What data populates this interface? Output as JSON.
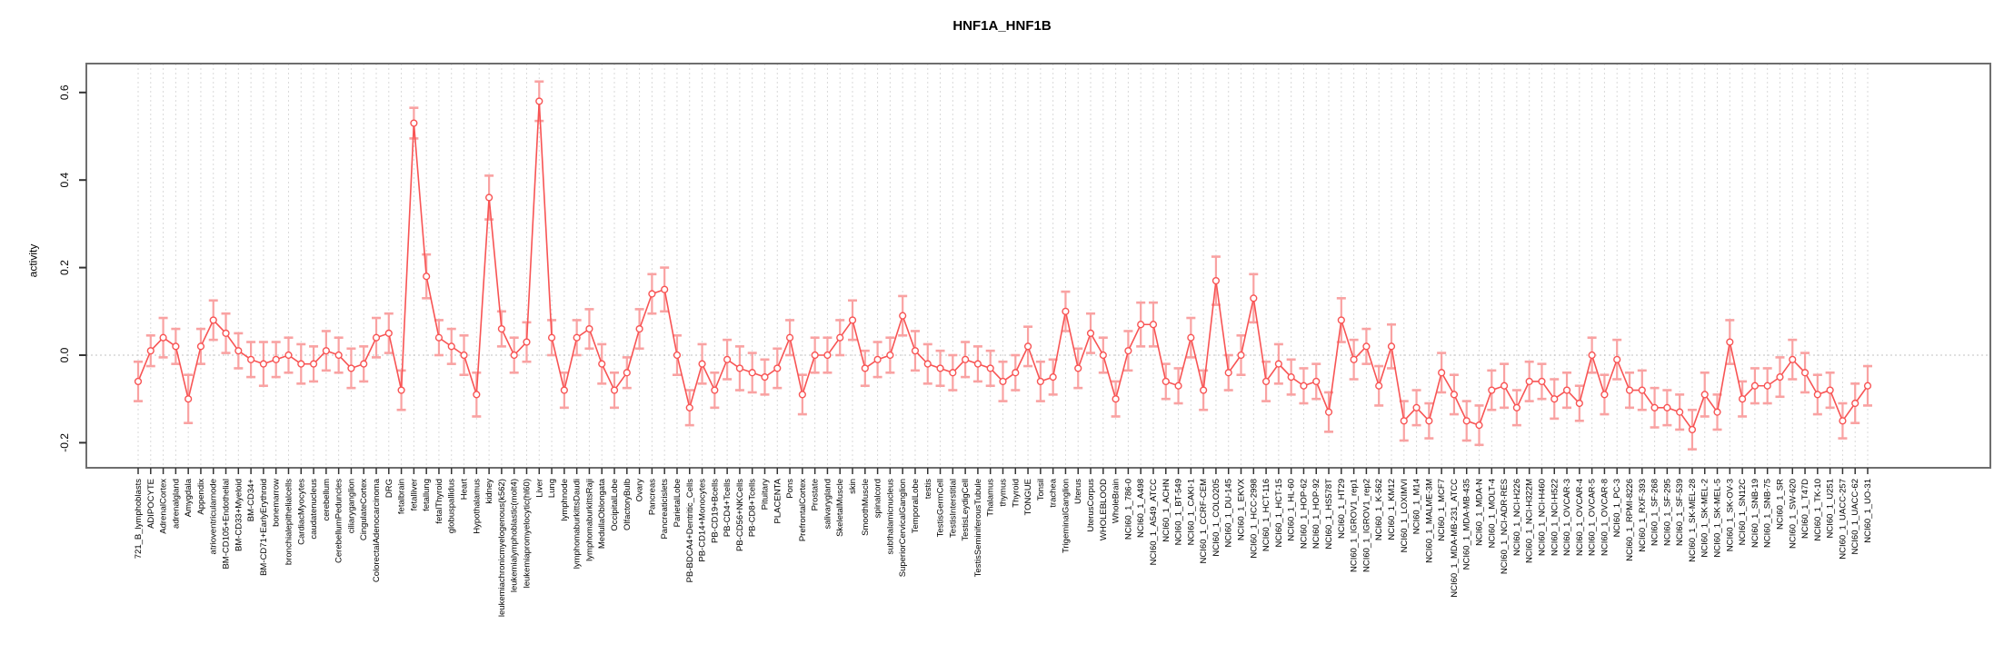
{
  "chart_data": {
    "type": "line",
    "title": "HNF1A_HNF1B",
    "xlabel": "",
    "ylabel": "activity",
    "ylim": [
      -0.27,
      0.66
    ],
    "yticks": [
      -0.2,
      0.0,
      0.2,
      0.4,
      0.6
    ],
    "legend_position": "none",
    "grid": "dashed vertical line per category; dotted horizontal line at 0.0",
    "marker": "open-circle",
    "error_bars": true,
    "colors": {
      "series": "#f85454",
      "error_bar": "#f9a2a2",
      "gridline": "#d9d9d9",
      "zero_line": "#c0c0c0",
      "box": "#6e6e6e",
      "text": "#000000"
    },
    "categories": [
      "721_B_lymphoblasts",
      "ADIPOCYTE",
      "AdrenalCortex",
      "adrenalgland",
      "Amygdala",
      "Appendix",
      "atrioventricularnode",
      "BM-CD105+Endothelial",
      "BM-CD33+Myeloid",
      "BM-CD34+",
      "BM-CD71+EarlyErythroid",
      "bonemarrow",
      "bronchialepithelialcells",
      "CardiacMyocytes",
      "caudatenucleus",
      "cerebellum",
      "CerebellumPeduncles",
      "ciliaryganglion",
      "CingulateCortex",
      "ColorectalAdenocarcinoma",
      "DRG",
      "fetalbrain",
      "fetalliver",
      "fetallung",
      "fetalThyroid",
      "globuspallidus",
      "Heart",
      "Hypothalamus",
      "kidney",
      "leukemiachronicmyelogenous(k562)",
      "leukemialymphoblastic(molt4)",
      "leukemiapromyelocytic(hl60)",
      "Liver",
      "Lung",
      "lymphnode",
      "lymphomaburkittsDaudi",
      "lymphomaburkittsRaji",
      "MedullaOblongata",
      "OccipitalLobe",
      "OlfactoryBulb",
      "Ovary",
      "Pancreas",
      "Pancreaticislets",
      "ParietalLobe",
      "PB-BDCA4+Dentritic_Cells",
      "PB-CD14+Monocytes",
      "PB-CD19+Bcells",
      "PB-CD4+Tcells",
      "PB-CD56+NKCells",
      "PB-CD8+Tcells",
      "Pituitary",
      "PLACENTA",
      "Pons",
      "PrefrontalCortex",
      "Prostate",
      "salivarygland",
      "SkeletalMuscle",
      "skin",
      "SmoothMuscle",
      "spinalcord",
      "subthalamicnucleus",
      "SuperiorCervicalGanglion",
      "TemporalLobe",
      "testis",
      "TestisGermCell",
      "TestisInterstitial",
      "TestisLeydigCell",
      "TestisSeminiferousTubule",
      "Thalamus",
      "thymus",
      "Thyroid",
      "TONGUE",
      "Tonsil",
      "trachea",
      "TrigeminalGanglion",
      "Uterus",
      "UterusCorpus",
      "WHOLEBLOOD",
      "WholeBrain",
      "NCI60_1_786-0",
      "NCI60_1_A498",
      "NCI60_1_A549_ATCC",
      "NCI60_1_ACHN",
      "NCI60_1_BT-549",
      "NCI60_1_CAKI-1",
      "NCI60_1_CCRF-CEM",
      "NCI60_1_COLO205",
      "NCI60_1_DU-145",
      "NCI60_1_EKVX",
      "NCI60_1_HCC-2998",
      "NCI60_1_HCT-116",
      "NCI60_1_HCT-15",
      "NCI60_1_HL-60",
      "NCI60_1_HOP-62",
      "NCI60_1_HOP-92",
      "NCI60_1_HS578T",
      "NCI60_1_HT29",
      "NCI60_1_IGROV1_rep1",
      "NCI60_1_IGROV1_rep2",
      "NCI60_1_K-562",
      "NCI60_1_KM12",
      "NCI60_1_LOXIMVI",
      "NCI60_1_M14",
      "NCI60_1_MALME-3M",
      "NCI60_1_MCF7",
      "NCI60_1_MDA-MB-231_ATCC",
      "NCI60_1_MDA-MB-435",
      "NCI60_1_MDA-N",
      "NCI60_1_MOLT-4",
      "NCI60_1_NCI-ADR-RES",
      "NCI60_1_NCI-H226",
      "NCI60_1_NCI-H322M",
      "NCI60_1_NCI-H460",
      "NCI60_1_NCI-H522",
      "NCI60_1_OVCAR-3",
      "NCI60_1_OVCAR-4",
      "NCI60_1_OVCAR-5",
      "NCI60_1_OVCAR-8",
      "NCI60_1_PC-3",
      "NCI60_1_RPMI-8226",
      "NCI60_1_RXF-393",
      "NCI60_1_SF-268",
      "NCI60_1_SF-295",
      "NCI60_1_SF-539",
      "NCI60_1_SK-MEL-28",
      "NCI60_1_SK-MEL-2",
      "NCI60_1_SK-MEL-5",
      "NCI60_1_SK-OV-3",
      "NCI60_1_SN12C",
      "NCI60_1_SNB-19",
      "NCI60_1_SNB-75",
      "NCI60_1_SR",
      "NCI60_1_SW-620",
      "NCI60_1_T47D",
      "NCI60_1_TK-10",
      "NCI60_1_U251",
      "NCI60_1_UACC-257",
      "NCI60_1_UACC-62",
      "NCI60_1_UO-31"
    ],
    "series": [
      {
        "name": "activity",
        "values": [
          -0.06,
          0.01,
          0.04,
          0.02,
          -0.1,
          0.02,
          0.08,
          0.05,
          0.01,
          -0.01,
          -0.02,
          -0.01,
          0.0,
          -0.02,
          -0.02,
          0.01,
          0.0,
          -0.03,
          -0.02,
          0.04,
          0.05,
          -0.08,
          0.53,
          0.18,
          0.04,
          0.02,
          0.0,
          -0.09,
          0.36,
          0.06,
          0.0,
          0.03,
          0.58,
          0.04,
          -0.08,
          0.04,
          0.06,
          -0.02,
          -0.08,
          -0.04,
          0.06,
          0.14,
          0.15,
          0.0,
          -0.12,
          -0.02,
          -0.08,
          -0.01,
          -0.03,
          -0.04,
          -0.05,
          -0.03,
          0.04,
          -0.09,
          0.0,
          0.0,
          0.04,
          0.08,
          -0.03,
          -0.01,
          0.0,
          0.09,
          0.01,
          -0.02,
          -0.03,
          -0.04,
          -0.01,
          -0.02,
          -0.03,
          -0.06,
          -0.04,
          0.02,
          -0.06,
          -0.05,
          0.1,
          -0.03,
          0.05,
          0.0,
          -0.1,
          0.01,
          0.07,
          0.07,
          -0.06,
          -0.07,
          0.04,
          -0.08,
          0.17,
          -0.04,
          0.0,
          0.13,
          -0.06,
          -0.02,
          -0.05,
          -0.07,
          -0.06,
          -0.13,
          0.08,
          -0.01,
          0.02,
          -0.07,
          0.02,
          -0.15,
          -0.12,
          -0.15,
          -0.04,
          -0.09,
          -0.15,
          -0.16,
          -0.08,
          -0.07,
          -0.12,
          -0.06,
          -0.06,
          -0.1,
          -0.08,
          -0.11,
          0.0,
          -0.09,
          -0.01,
          -0.08,
          -0.08,
          -0.12,
          -0.12,
          -0.13,
          -0.17,
          -0.09,
          -0.13,
          0.03,
          -0.1,
          -0.07,
          -0.07,
          -0.05,
          -0.01,
          -0.04,
          -0.09,
          -0.08,
          -0.15,
          -0.11,
          -0.07
        ],
        "errors": [
          0.045,
          0.035,
          0.045,
          0.04,
          0.055,
          0.04,
          0.045,
          0.045,
          0.04,
          0.04,
          0.05,
          0.04,
          0.04,
          0.045,
          0.04,
          0.045,
          0.04,
          0.045,
          0.04,
          0.045,
          0.045,
          0.045,
          0.035,
          0.05,
          0.04,
          0.04,
          0.045,
          0.05,
          0.05,
          0.04,
          0.04,
          0.045,
          0.045,
          0.04,
          0.04,
          0.04,
          0.045,
          0.045,
          0.04,
          0.035,
          0.045,
          0.045,
          0.05,
          0.045,
          0.04,
          0.045,
          0.04,
          0.045,
          0.05,
          0.045,
          0.04,
          0.045,
          0.04,
          0.045,
          0.04,
          0.04,
          0.04,
          0.045,
          0.04,
          0.04,
          0.04,
          0.045,
          0.045,
          0.045,
          0.04,
          0.04,
          0.04,
          0.04,
          0.04,
          0.045,
          0.04,
          0.045,
          0.045,
          0.04,
          0.045,
          0.045,
          0.045,
          0.04,
          0.04,
          0.045,
          0.05,
          0.05,
          0.04,
          0.04,
          0.045,
          0.045,
          0.055,
          0.04,
          0.045,
          0.055,
          0.045,
          0.045,
          0.04,
          0.04,
          0.04,
          0.045,
          0.05,
          0.045,
          0.04,
          0.045,
          0.05,
          0.045,
          0.04,
          0.04,
          0.045,
          0.045,
          0.045,
          0.045,
          0.045,
          0.05,
          0.04,
          0.045,
          0.04,
          0.045,
          0.04,
          0.04,
          0.04,
          0.045,
          0.045,
          0.04,
          0.045,
          0.045,
          0.04,
          0.04,
          0.045,
          0.05,
          0.04,
          0.05,
          0.04,
          0.04,
          0.04,
          0.045,
          0.045,
          0.045,
          0.045,
          0.04,
          0.04,
          0.045,
          0.045
        ]
      }
    ],
    "ytick_labels": [
      "-0.2",
      "0.0",
      "0.2",
      "0.4",
      "0.6"
    ]
  }
}
